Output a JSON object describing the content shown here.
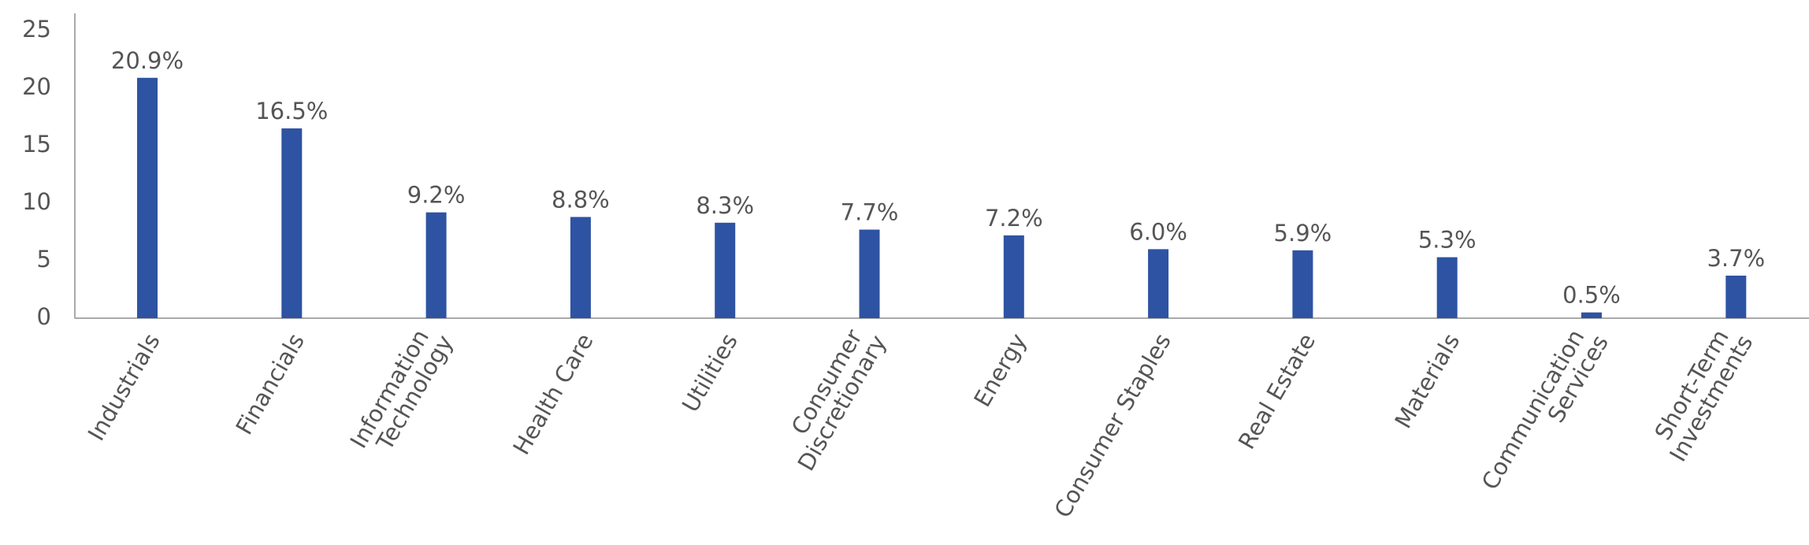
{
  "chart_data": {
    "type": "bar",
    "categories": [
      "Industrials",
      "Financials",
      "Information Technology",
      "Health Care",
      "Utilities",
      "Consumer Discretionary",
      "Energy",
      "Consumer Staples",
      "Real Estate",
      "Materials",
      "Communication Services",
      "Short-Term Investments"
    ],
    "values": [
      20.9,
      16.5,
      9.2,
      8.8,
      8.3,
      7.7,
      7.2,
      6.0,
      5.9,
      5.3,
      0.5,
      3.7
    ],
    "value_labels": [
      "20.9%",
      "16.5%",
      "9.2%",
      "8.8%",
      "8.3%",
      "7.7%",
      "7.2%",
      "6.0%",
      "5.9%",
      "5.3%",
      "0.5%",
      "3.7%"
    ],
    "color": "#2e53a3",
    "ylim": [
      0,
      26.5
    ],
    "yticks": [
      0,
      5,
      10,
      15,
      20,
      25
    ],
    "grid": false
  }
}
